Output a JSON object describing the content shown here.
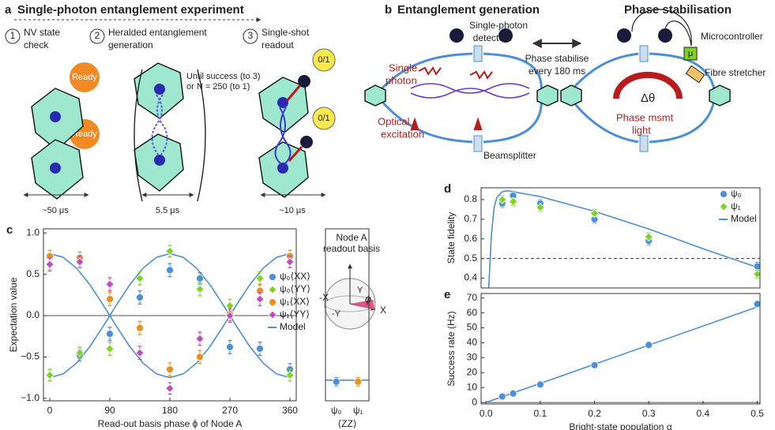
{
  "panel_a": {
    "label": "a",
    "title": "Single-photon entanglement experiment",
    "steps": [
      {
        "number": "1",
        "lines": [
          "NV state",
          "check"
        ]
      },
      {
        "number": "2",
        "lines": [
          "Heralded  entanglement",
          "generation"
        ]
      },
      {
        "number": "3",
        "lines": [
          "Single-shot",
          "readout"
        ]
      }
    ],
    "loop_note": [
      "Until success (to 3)",
      "or N = 250 (to 1)"
    ],
    "ready": [
      "Ready",
      "Ready"
    ],
    "readout": [
      "0/1",
      "0/1"
    ],
    "durations": [
      "~50 μs",
      "5.5 μs",
      "~10 μs"
    ]
  },
  "panel_b": {
    "label": "b",
    "left_title": "Entanglement generation",
    "right_title": "Phase stabilisation",
    "detectors": [
      "Single-photon",
      "detectors"
    ],
    "single_photon": [
      "Single",
      "photon"
    ],
    "excitation": [
      "Optical",
      "excitation"
    ],
    "beamsplitter": "Beamsplitter",
    "stabilise_note": [
      "Phase stabilise",
      "every 180 ms"
    ],
    "microcontroller": "Microcontroller",
    "mu": "μ",
    "stretcher": "Fibre stretcher",
    "phase": "Δθ",
    "msmt_light": [
      "Phase msmt",
      "light"
    ]
  },
  "chart_data": [
    {
      "type": "scatter",
      "panel_label": "c",
      "xlabel": "Read-out basis phase ϕ  of Node A",
      "ylabel": "Expectation value",
      "x": [
        0,
        45,
        90,
        135,
        180,
        225,
        270,
        315,
        360
      ],
      "series": [
        {
          "name": "ψ₀⟨XX⟩",
          "color": "#4b8fd8",
          "marker": "circle",
          "values": [
            -0.72,
            -0.48,
            -0.22,
            0.22,
            0.55,
            0.45,
            -0.38,
            -0.4,
            -0.65
          ],
          "errors": [
            0.07,
            0.07,
            0.08,
            0.08,
            0.08,
            0.07,
            0.08,
            0.08,
            0.07
          ]
        },
        {
          "name": "ψ₀⟨YY⟩",
          "color": "#7ed321",
          "marker": "diamond",
          "values": [
            -0.72,
            -0.45,
            -0.4,
            0.45,
            0.78,
            0.32,
            0.12,
            0.45,
            -0.72
          ],
          "errors": [
            0.07,
            0.07,
            0.08,
            0.08,
            0.07,
            0.08,
            0.08,
            0.08,
            0.07
          ]
        },
        {
          "name": "ψ₁⟨XX⟩",
          "color": "#e8921e",
          "marker": "circle",
          "values": [
            0.72,
            0.7,
            0.2,
            -0.15,
            -0.65,
            -0.5,
            0.02,
            0.3,
            0.72
          ],
          "errors": [
            0.07,
            0.07,
            0.08,
            0.08,
            0.08,
            0.08,
            0.08,
            0.08,
            0.07
          ]
        },
        {
          "name": "ψ₁⟨YY⟩",
          "color": "#c04cc0",
          "marker": "diamond",
          "values": [
            0.62,
            0.65,
            0.38,
            -0.45,
            -0.88,
            -0.28,
            0.0,
            0.2,
            0.65
          ],
          "errors": [
            0.08,
            0.07,
            0.08,
            0.08,
            0.07,
            0.08,
            0.08,
            0.08,
            0.07
          ]
        }
      ],
      "model": {
        "name": "Model",
        "color": "#4b8fd8",
        "x": [
          0,
          20,
          40,
          60,
          80,
          100,
          120,
          140,
          160,
          180,
          200,
          220,
          240,
          260,
          280,
          300,
          320,
          340,
          360
        ],
        "curves": [
          [
            0.75,
            0.705,
            0.575,
            0.375,
            0.13,
            -0.13,
            -0.375,
            -0.575,
            -0.705,
            -0.75,
            -0.705,
            -0.575,
            -0.375,
            -0.13,
            0.13,
            0.375,
            0.575,
            0.705,
            0.75
          ],
          [
            -0.75,
            -0.705,
            -0.575,
            -0.375,
            -0.13,
            0.13,
            0.375,
            0.575,
            0.705,
            0.75,
            0.705,
            0.575,
            0.375,
            0.13,
            -0.13,
            -0.375,
            -0.575,
            -0.705,
            -0.75
          ]
        ]
      },
      "xlim": [
        -9.5,
        369.5
      ],
      "ylim": [
        -1.03,
        1.05
      ],
      "xticks": [
        0,
        90,
        180,
        270,
        360
      ],
      "yticks": [
        {
          "value": -1,
          "label": "−1.0"
        },
        {
          "value": -0.5,
          "label": "−0.5"
        },
        {
          "value": 0,
          "label": "0.0"
        },
        0.5,
        {
          "value": 1,
          "label": "1.0"
        }
      ],
      "legend": "right"
    },
    {
      "type": "scatter",
      "categories": [
        "ψ₀",
        "ψ₁"
      ],
      "xlabel": "⟨ZZ⟩",
      "values": [
        -0.8,
        -0.8
      ],
      "errors": [
        0.05,
        0.05
      ],
      "colors": [
        "#4b8fd8",
        "#e8921e"
      ],
      "model_value": -0.78,
      "model_color": "#4b8fd8",
      "ylim": [
        -1.03,
        1.05
      ],
      "inset": {
        "title": [
          "Node A",
          "readout basis"
        ],
        "axes": [
          "X",
          "-X",
          "Y",
          "-Y",
          "ϕ"
        ]
      }
    },
    {
      "type": "scatter",
      "panel_label": "d",
      "ylabel": "State fidelity",
      "x": [
        0.03,
        0.05,
        0.1,
        0.2,
        0.3,
        0.5
      ],
      "series": [
        {
          "name": "ψ₀",
          "color": "#4b8fd8",
          "marker": "circle",
          "values": [
            0.78,
            0.82,
            0.78,
            0.7,
            0.59,
            0.46
          ],
          "errors": [
            0.02,
            0.02,
            0.02,
            0.02,
            0.02,
            0.02
          ]
        },
        {
          "name": "ψ₁",
          "color": "#7ed321",
          "marker": "diamond",
          "values": [
            0.8,
            0.79,
            0.76,
            0.73,
            0.61,
            0.42
          ],
          "errors": [
            0.02,
            0.02,
            0.02,
            0.02,
            0.02,
            0.02
          ]
        }
      ],
      "model": {
        "name": "Model",
        "color": "#4b8fd8",
        "x": [
          0.005,
          0.01,
          0.015,
          0.02,
          0.03,
          0.04,
          0.05,
          0.1,
          0.2,
          0.3,
          0.4,
          0.5
        ],
        "curves": [
          [
            0.35,
            0.62,
            0.76,
            0.81,
            0.84,
            0.845,
            0.84,
            0.815,
            0.74,
            0.65,
            0.55,
            0.455
          ]
        ]
      },
      "reference_line": 0.5,
      "xlim": [
        -0.009,
        0.505
      ],
      "ylim": [
        0.35,
        0.86
      ],
      "yticks": [
        0.4,
        0.5,
        0.6,
        0.7,
        0.8
      ],
      "legend": "upper right"
    },
    {
      "type": "scatter",
      "panel_label": "e",
      "xlabel": "Bright-state population α",
      "ylabel": "Success rate (Hz)",
      "x": [
        0.03,
        0.05,
        0.1,
        0.2,
        0.3,
        0.5
      ],
      "series": [
        {
          "color": "#4b8fd8",
          "marker": "circle",
          "values": [
            4,
            6,
            12,
            25,
            38.5,
            66
          ],
          "errors": [
            0.5,
            0.5,
            0.5,
            0.6,
            0.7,
            1
          ]
        }
      ],
      "model": {
        "color": "#4b8fd8",
        "x": [
          0,
          0.5
        ],
        "curves": [
          [
            0,
            64
          ]
        ]
      },
      "xlim": [
        -0.009,
        0.505
      ],
      "ylim": [
        -1,
        73
      ],
      "xticks": [
        {
          "value": 0,
          "label": "0.0"
        },
        0.1,
        0.2,
        0.3,
        0.4,
        0.5
      ],
      "yticks": [
        0,
        10,
        20,
        30,
        40,
        50,
        60,
        70
      ]
    }
  ]
}
